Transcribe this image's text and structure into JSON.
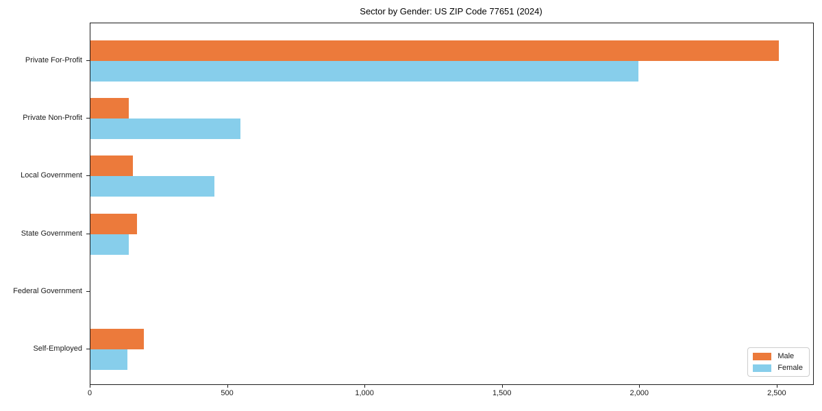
{
  "chart_data": {
    "type": "bar",
    "orientation": "horizontal",
    "title": "Sector by Gender: US ZIP Code 77651 (2024)",
    "categories": [
      "Private For-Profit",
      "Private Non-Profit",
      "Local Government",
      "State Government",
      "Federal Government",
      "Self-Employed"
    ],
    "series": [
      {
        "name": "Male",
        "color": "#EC7A3B",
        "values": [
          2505,
          140,
          155,
          170,
          0,
          195
        ]
      },
      {
        "name": "Female",
        "color": "#87CEEB",
        "values": [
          1995,
          545,
          450,
          140,
          0,
          135
        ]
      }
    ],
    "xlabel": "",
    "ylabel": "",
    "xlim": [
      0,
      2630
    ],
    "xticks": {
      "values": [
        0,
        500,
        1000,
        1500,
        2000,
        2500
      ],
      "labels": [
        "0",
        "500",
        "1,000",
        "1,500",
        "2,000",
        "2,500"
      ]
    },
    "grid": false,
    "plot_background": "#ffffff",
    "axis_color": "#1a1a1a",
    "legend": {
      "position": "lower right",
      "entries": [
        "Male",
        "Female"
      ]
    }
  }
}
